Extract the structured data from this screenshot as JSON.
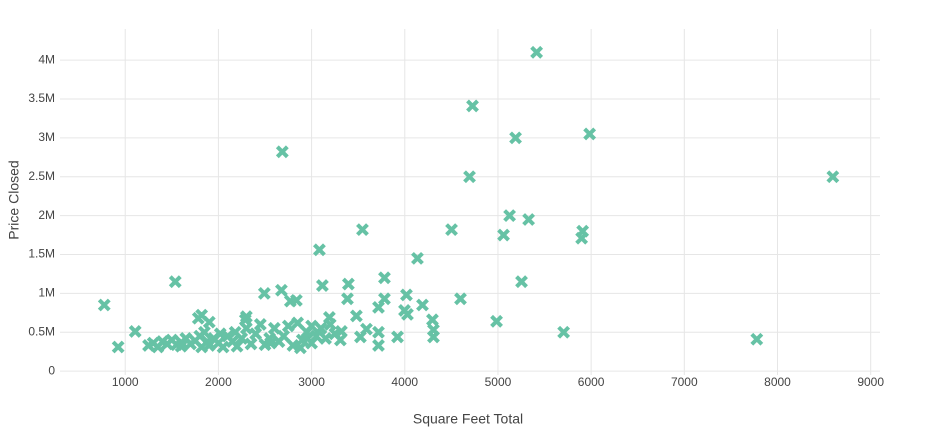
{
  "chart_data": {
    "type": "scatter",
    "x_label": "Square Feet Total",
    "y_label": "Price Closed",
    "color": "#66c2a5",
    "grid": true,
    "xlim": [
      300,
      9100
    ],
    "ylim": [
      -50000,
      4400000
    ],
    "xticks": [
      1000,
      2000,
      3000,
      4000,
      5000,
      6000,
      7000,
      8000,
      9000
    ],
    "yticks": [
      0,
      {
        "value": 500000,
        "label": "0.5M"
      },
      {
        "value": 1000000,
        "label": "1M"
      },
      {
        "value": 1500000,
        "label": "1.5M"
      },
      {
        "value": 2000000,
        "label": "2M"
      },
      {
        "value": 2500000,
        "label": "2.5M"
      },
      {
        "value": 3000000,
        "label": "3M"
      },
      {
        "value": 3500000,
        "label": "3.5M"
      },
      {
        "value": 4000000,
        "label": "4M"
      }
    ],
    "x": [
      5415,
      4727,
      5189,
      5984,
      2686,
      4695,
      8594,
      5125,
      5329,
      4502,
      3546,
      5060,
      5909,
      5898,
      3084,
      4136,
      1537,
      5253,
      775,
      3782,
      3116,
      3395,
      2676,
      2493,
      4018,
      4598,
      3385,
      3782,
      2837,
      2772,
      4190,
      3718,
      3997,
      4029,
      3481,
      3191,
      4297,
      4985,
      2289,
      1784,
      1902,
      5705,
      7778,
      1107,
      924,
      4308,
      4308,
      3922,
      3718,
      3718,
      3589,
      3524,
      3309,
      3320,
      2955,
      1250,
      1300,
      1350,
      1400,
      1450,
      1500,
      1550,
      1600,
      1650,
      1700,
      1750,
      1800,
      1820,
      1850,
      1880,
      1900,
      1950,
      2000,
      2050,
      2100,
      2150,
      2180,
      2200,
      2250,
      2300,
      2350,
      2400,
      2450,
      2500,
      2550,
      2600,
      2650,
      2700,
      2750,
      2800,
      2850,
      2900,
      2950,
      3000,
      3050,
      3100,
      3150,
      3200,
      3250,
      2300,
      1820,
      1600,
      2020,
      2560,
      2880,
      3000
    ],
    "y": [
      4100000,
      3410000,
      3000000,
      3050000,
      2820000,
      2500000,
      2500000,
      2000000,
      1950000,
      1820000,
      1820000,
      1750000,
      1800000,
      1710000,
      1560000,
      1450000,
      1150000,
      1150000,
      850000,
      1200000,
      1100000,
      1120000,
      1040000,
      1000000,
      980000,
      930000,
      930000,
      930000,
      910000,
      900000,
      850000,
      820000,
      780000,
      730000,
      710000,
      690000,
      660000,
      640000,
      660000,
      680000,
      630000,
      500000,
      410000,
      510000,
      310000,
      530000,
      440000,
      440000,
      500000,
      330000,
      540000,
      440000,
      400000,
      510000,
      420000,
      330000,
      360000,
      310000,
      380000,
      350000,
      400000,
      340000,
      370000,
      420000,
      350000,
      390000,
      450000,
      310000,
      500000,
      380000,
      330000,
      420000,
      360000,
      310000,
      450000,
      380000,
      500000,
      320000,
      420000,
      550000,
      350000,
      480000,
      600000,
      340000,
      420000,
      550000,
      380000,
      450000,
      580000,
      330000,
      620000,
      400000,
      500000,
      360000,
      450000,
      550000,
      420000,
      600000,
      480000,
      700000,
      720000,
      320000,
      480000,
      360000,
      300000,
      580000
    ]
  }
}
